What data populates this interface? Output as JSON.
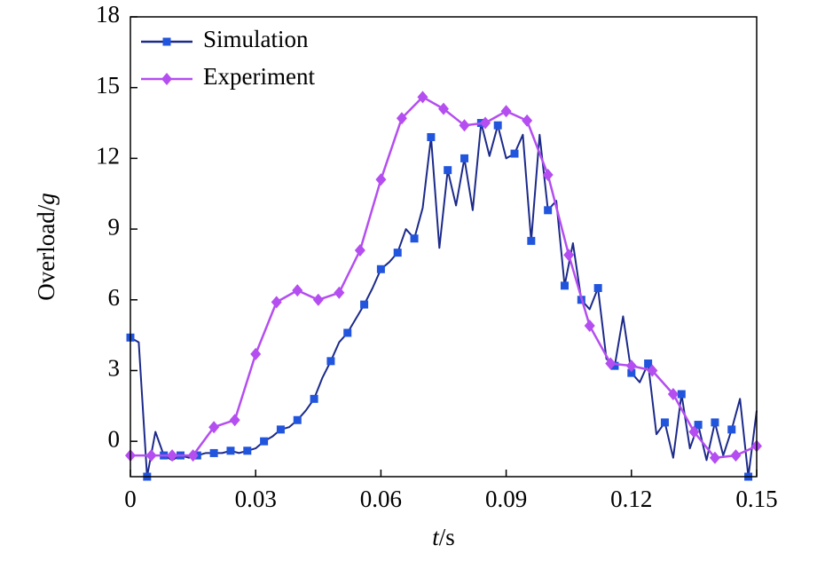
{
  "chart_data": {
    "type": "line",
    "xlabel": "t/s",
    "ylabel": "Overload/g",
    "xlim": [
      0,
      0.15
    ],
    "xticks": [
      0,
      0.03,
      0.06,
      0.09,
      0.12,
      0.15
    ],
    "ylim": [
      -1.5,
      18
    ],
    "yticks": [
      0,
      3,
      6,
      9,
      12,
      15,
      18
    ],
    "legend": "upper left",
    "series": [
      {
        "name": "Simulation",
        "color": "#1c2a8a",
        "marker_color": "#2255dd",
        "marker": "square",
        "x": [
          0,
          0.002,
          0.004,
          0.006,
          0.008,
          0.01,
          0.012,
          0.014,
          0.016,
          0.018,
          0.02,
          0.022,
          0.024,
          0.026,
          0.028,
          0.03,
          0.032,
          0.034,
          0.036,
          0.038,
          0.04,
          0.042,
          0.044,
          0.046,
          0.048,
          0.05,
          0.052,
          0.054,
          0.056,
          0.058,
          0.06,
          0.062,
          0.064,
          0.066,
          0.068,
          0.07,
          0.072,
          0.074,
          0.076,
          0.078,
          0.08,
          0.082,
          0.084,
          0.086,
          0.088,
          0.09,
          0.092,
          0.094,
          0.096,
          0.098,
          0.1,
          0.102,
          0.104,
          0.106,
          0.108,
          0.11,
          0.112,
          0.114,
          0.116,
          0.118,
          0.12,
          0.122,
          0.124,
          0.126,
          0.128,
          0.13,
          0.132,
          0.134,
          0.136,
          0.138,
          0.14,
          0.142,
          0.144,
          0.146,
          0.148,
          0.15
        ],
        "values": [
          4.4,
          4.2,
          -1.5,
          0.4,
          -0.6,
          -0.8,
          -0.6,
          -0.7,
          -0.6,
          -0.5,
          -0.5,
          -0.5,
          -0.4,
          -0.5,
          -0.4,
          -0.3,
          0.0,
          0.2,
          0.5,
          0.6,
          0.9,
          1.3,
          1.8,
          2.7,
          3.4,
          4.2,
          4.6,
          5.2,
          5.8,
          6.5,
          7.3,
          7.6,
          8.0,
          9.0,
          8.6,
          9.9,
          12.9,
          8.2,
          11.5,
          10.0,
          12.0,
          9.8,
          13.5,
          12.1,
          13.4,
          12.0,
          12.2,
          13.0,
          8.5,
          13.0,
          9.8,
          10.2,
          6.6,
          8.4,
          6.0,
          5.6,
          6.5,
          3.5,
          3.2,
          5.3,
          2.9,
          2.5,
          3.3,
          0.3,
          0.8,
          -0.7,
          2.0,
          -0.3,
          0.7,
          -0.8,
          0.8,
          -0.6,
          0.5,
          1.8,
          -1.5,
          1.3
        ]
      },
      {
        "name": "Experiment",
        "color": "#b44ef0",
        "marker_color": "#b44ef0",
        "marker": "diamond",
        "x": [
          0,
          0.005,
          0.01,
          0.015,
          0.02,
          0.025,
          0.03,
          0.035,
          0.04,
          0.045,
          0.05,
          0.055,
          0.06,
          0.065,
          0.07,
          0.075,
          0.08,
          0.085,
          0.09,
          0.095,
          0.1,
          0.105,
          0.11,
          0.115,
          0.12,
          0.125,
          0.13,
          0.135,
          0.14,
          0.145,
          0.15
        ],
        "values": [
          -0.6,
          -0.6,
          -0.6,
          -0.6,
          0.6,
          0.9,
          3.7,
          5.9,
          6.4,
          6.0,
          6.3,
          8.1,
          11.1,
          13.7,
          14.6,
          14.1,
          13.4,
          13.5,
          14.0,
          13.6,
          11.3,
          7.9,
          4.9,
          3.3,
          3.2,
          3.0,
          2.0,
          0.4,
          -0.7,
          -0.6,
          -0.2
        ]
      }
    ]
  }
}
